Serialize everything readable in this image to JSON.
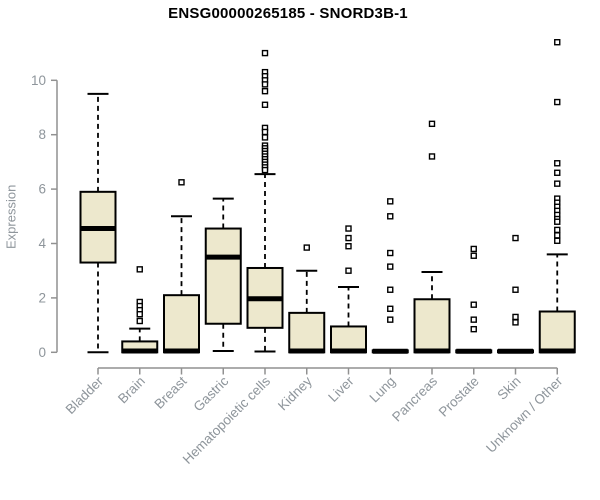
{
  "chart_data": {
    "type": "box",
    "title": "ENSG00000265185 - SNORD3B-1",
    "ylabel": "Expression",
    "xlabel": "",
    "ylim": [
      0,
      11.5
    ],
    "yticks": [
      0,
      2,
      4,
      6,
      8,
      10
    ],
    "grid": false,
    "legend": "none",
    "categories": [
      "Bladder",
      "Brain",
      "Breast",
      "Gastric",
      "Hematopoietic cells",
      "Kidney",
      "Liver",
      "Lung",
      "Pancreas",
      "Prostate",
      "Skin",
      "Unknown / Other"
    ],
    "boxes": [
      {
        "category": "Bladder",
        "whisker_low": 0,
        "q1": 3.3,
        "median": 4.55,
        "q3": 5.9,
        "whisker_high": 9.5,
        "outliers": []
      },
      {
        "category": "Brain",
        "whisker_low": 0,
        "q1": 0,
        "median": 0.05,
        "q3": 0.4,
        "whisker_high": 0.87,
        "outliers": [
          3.05,
          1.85,
          1.7,
          1.55,
          1.4,
          1.15
        ]
      },
      {
        "category": "Breast",
        "whisker_low": 0,
        "q1": 0,
        "median": 0.05,
        "q3": 2.1,
        "whisker_high": 5.0,
        "outliers": [
          6.25
        ]
      },
      {
        "category": "Gastric",
        "whisker_low": 0.05,
        "q1": 1.05,
        "median": 3.5,
        "q3": 4.55,
        "whisker_high": 5.65,
        "outliers": []
      },
      {
        "category": "Hematopoietic cells",
        "whisker_low": 0.03,
        "q1": 0.9,
        "median": 1.97,
        "q3": 3.1,
        "whisker_high": 6.55,
        "outliers": [
          11.0,
          10.3,
          10.15,
          10.0,
          9.85,
          9.6,
          9.1,
          8.25,
          8.1,
          7.9,
          7.6,
          7.5,
          7.4,
          7.3,
          7.2,
          7.1,
          7.0,
          6.9,
          6.8,
          6.7
        ]
      },
      {
        "category": "Kidney",
        "whisker_low": 0,
        "q1": 0,
        "median": 0.05,
        "q3": 1.45,
        "whisker_high": 3.0,
        "outliers": [
          3.85
        ]
      },
      {
        "category": "Liver",
        "whisker_low": 0,
        "q1": 0,
        "median": 0.05,
        "q3": 0.95,
        "whisker_high": 2.4,
        "outliers": [
          4.55,
          4.2,
          3.9,
          3.0
        ]
      },
      {
        "category": "Lung",
        "whisker_low": 0,
        "q1": 0,
        "median": 0.04,
        "q3": 0.07,
        "whisker_high": 0.07,
        "outliers": [
          5.55,
          5.0,
          3.65,
          3.15,
          2.3,
          1.6,
          1.2
        ]
      },
      {
        "category": "Pancreas",
        "whisker_low": 0,
        "q1": 0,
        "median": 0.05,
        "q3": 1.95,
        "whisker_high": 2.95,
        "outliers": [
          8.4,
          7.2
        ]
      },
      {
        "category": "Prostate",
        "whisker_low": 0,
        "q1": 0,
        "median": 0.04,
        "q3": 0.07,
        "whisker_high": 0.07,
        "outliers": [
          3.8,
          3.55,
          1.75,
          1.2,
          0.85
        ]
      },
      {
        "category": "Skin",
        "whisker_low": 0,
        "q1": 0,
        "median": 0.04,
        "q3": 0.07,
        "whisker_high": 0.07,
        "outliers": [
          4.2,
          2.3,
          1.3,
          1.1
        ]
      },
      {
        "category": "Unknown / Other",
        "whisker_low": 0,
        "q1": 0,
        "median": 0.05,
        "q3": 1.5,
        "whisker_high": 3.6,
        "outliers": [
          11.4,
          9.2,
          6.95,
          6.6,
          6.2,
          5.65,
          5.5,
          5.35,
          5.2,
          5.05,
          4.9,
          4.8,
          4.5,
          4.3,
          4.1
        ]
      }
    ],
    "colors": {
      "box_fill": "#ede8cd",
      "box_border": "#000000",
      "median": "#000000",
      "whisker": "#000000",
      "outlier_stroke": "#000000",
      "outlier_fill": "#ffffff",
      "axis_line": "#919191",
      "axis_text": "#8e959b",
      "title_text": "#000000",
      "background": "#ffffff"
    }
  }
}
